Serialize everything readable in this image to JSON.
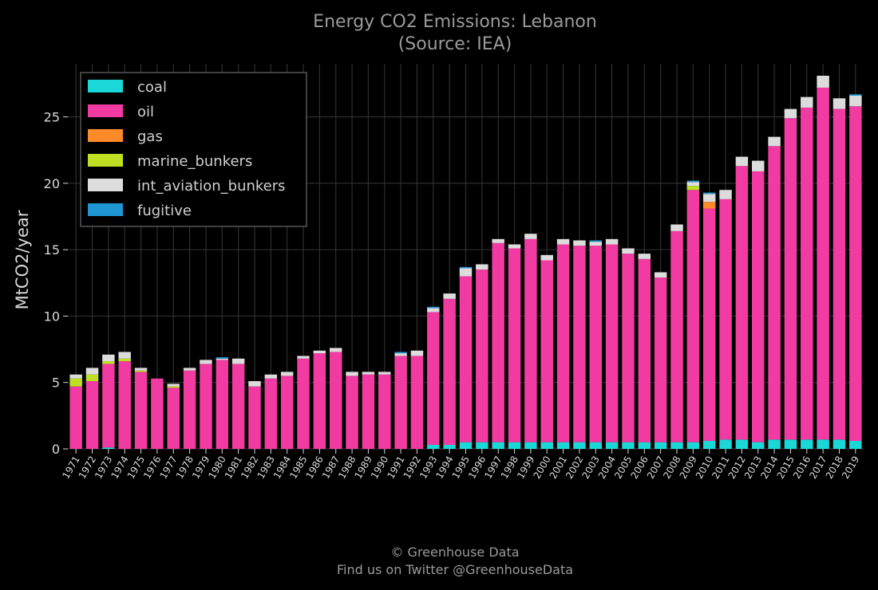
{
  "chart_data": {
    "type": "bar",
    "stacked": true,
    "title": "Energy CO2 Emissions: Lebanon",
    "subtitle": "(Source: IEA)",
    "xlabel": "",
    "ylabel": "MtCO2/year",
    "ylim": [
      0,
      29
    ],
    "yticks": [
      0,
      5,
      10,
      15,
      20,
      25
    ],
    "grid": true,
    "legend_position": "top-left",
    "footer_line1": "© Greenhouse Data",
    "footer_line2": "Find us on Twitter @GreenhouseData",
    "categories": [
      "1971",
      "1972",
      "1973",
      "1974",
      "1975",
      "1976",
      "1977",
      "1978",
      "1979",
      "1980",
      "1981",
      "1982",
      "1983",
      "1984",
      "1985",
      "1986",
      "1987",
      "1988",
      "1989",
      "1990",
      "1991",
      "1992",
      "1993",
      "1994",
      "1995",
      "1996",
      "1997",
      "1998",
      "1999",
      "2000",
      "2001",
      "2002",
      "2003",
      "2004",
      "2005",
      "2006",
      "2007",
      "2008",
      "2009",
      "2010",
      "2011",
      "2012",
      "2013",
      "2014",
      "2015",
      "2016",
      "2017",
      "2018",
      "2019"
    ],
    "series": [
      {
        "name": "coal",
        "color": "#1ad8d8",
        "values": [
          0,
          0,
          0.1,
          0,
          0,
          0,
          0,
          0,
          0,
          0,
          0,
          0,
          0,
          0,
          0,
          0,
          0,
          0,
          0,
          0,
          0,
          0,
          0.3,
          0.3,
          0.5,
          0.5,
          0.5,
          0.5,
          0.5,
          0.5,
          0.5,
          0.5,
          0.5,
          0.5,
          0.5,
          0.5,
          0.5,
          0.5,
          0.5,
          0.6,
          0.7,
          0.7,
          0.5,
          0.7,
          0.7,
          0.7,
          0.7,
          0.7,
          0.6
        ]
      },
      {
        "name": "oil",
        "color": "#f13ba2",
        "values": [
          4.7,
          5.1,
          6.3,
          6.6,
          5.8,
          5.3,
          4.6,
          5.9,
          6.4,
          6.7,
          6.4,
          4.7,
          5.3,
          5.5,
          6.8,
          7.2,
          7.3,
          5.5,
          5.6,
          5.6,
          7.0,
          7.0,
          10.0,
          11.0,
          12.5,
          13.0,
          15.0,
          14.6,
          15.3,
          13.7,
          14.9,
          14.8,
          14.8,
          14.9,
          14.2,
          13.8,
          12.4,
          15.9,
          19.0,
          17.5,
          18.1,
          20.6,
          20.4,
          22.1,
          24.2,
          25.0,
          26.5,
          24.9,
          25.2
        ]
      },
      {
        "name": "gas",
        "color": "#ff8a2a",
        "values": [
          0,
          0,
          0,
          0,
          0,
          0,
          0,
          0,
          0,
          0,
          0,
          0,
          0,
          0,
          0,
          0,
          0,
          0,
          0,
          0,
          0,
          0,
          0,
          0,
          0,
          0,
          0,
          0,
          0,
          0,
          0,
          0,
          0,
          0,
          0,
          0,
          0,
          0,
          0,
          0.5,
          0,
          0,
          0,
          0,
          0,
          0,
          0,
          0,
          0
        ]
      },
      {
        "name": "marine_bunkers",
        "color": "#bfe022",
        "values": [
          0.6,
          0.5,
          0.2,
          0.2,
          0.1,
          0,
          0.1,
          0,
          0,
          0,
          0,
          0,
          0,
          0,
          0,
          0,
          0,
          0,
          0,
          0,
          0,
          0,
          0,
          0,
          0,
          0,
          0,
          0,
          0,
          0,
          0,
          0,
          0,
          0,
          0,
          0,
          0,
          0,
          0.3,
          0,
          0,
          0,
          0,
          0,
          0,
          0,
          0,
          0,
          0
        ]
      },
      {
        "name": "int_aviation_bunkers",
        "color": "#dcdcdc",
        "values": [
          0.3,
          0.5,
          0.5,
          0.5,
          0.2,
          0,
          0.2,
          0.2,
          0.3,
          0.1,
          0.4,
          0.4,
          0.3,
          0.3,
          0.2,
          0.2,
          0.3,
          0.3,
          0.2,
          0.2,
          0.2,
          0.4,
          0.3,
          0.4,
          0.6,
          0.4,
          0.3,
          0.3,
          0.4,
          0.4,
          0.4,
          0.4,
          0.3,
          0.4,
          0.4,
          0.4,
          0.4,
          0.5,
          0.3,
          0.6,
          0.7,
          0.7,
          0.8,
          0.7,
          0.7,
          0.8,
          0.9,
          0.8,
          0.8
        ]
      },
      {
        "name": "fugitive",
        "color": "#1f97d4",
        "values": [
          0,
          0,
          0,
          0,
          0,
          0,
          0,
          0,
          0,
          0.1,
          0,
          0,
          0,
          0,
          0,
          0,
          0,
          0,
          0,
          0,
          0.1,
          0,
          0.1,
          0,
          0.1,
          0,
          0,
          0,
          0,
          0,
          0,
          0,
          0.1,
          0,
          0,
          0,
          0,
          0,
          0.1,
          0.1,
          0,
          0,
          0,
          0,
          0,
          0,
          0,
          0,
          0.1
        ]
      }
    ]
  }
}
